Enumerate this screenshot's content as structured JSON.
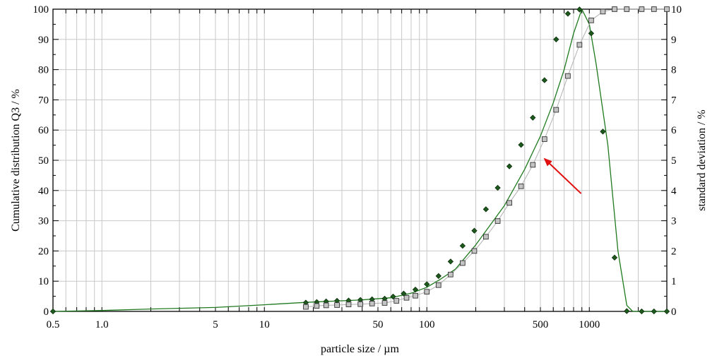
{
  "chart_data": {
    "type": "line",
    "title": "",
    "xlabel": "particle size / µm",
    "ylabel_left": "Cumulative distribution Q3 / %",
    "ylabel_right": "standard deviation / %",
    "x_scale": "log",
    "xlim": [
      0.5,
      3000
    ],
    "ylim_left": [
      0,
      100
    ],
    "ylim_right": [
      0,
      10
    ],
    "grid": true,
    "legend": "none",
    "x_tick_labels": [
      {
        "value": 0.5,
        "label": "0.5"
      },
      {
        "value": 1.0,
        "label": "1.0"
      },
      {
        "value": 5,
        "label": "5"
      },
      {
        "value": 10,
        "label": "10"
      },
      {
        "value": 50,
        "label": "50"
      },
      {
        "value": 100,
        "label": "100"
      },
      {
        "value": 500,
        "label": "500"
      },
      {
        "value": 1000,
        "label": "1000"
      }
    ],
    "y_left_ticks": [
      0,
      10,
      20,
      30,
      40,
      50,
      60,
      70,
      80,
      90,
      100
    ],
    "y_right_ticks": [
      0,
      1,
      2,
      3,
      4,
      5,
      6,
      7,
      8,
      9,
      10
    ],
    "series": [
      {
        "axis": "left",
        "color": "#1f7a1f",
        "marker": "diamond",
        "marker_fill": "#1e5a1e",
        "curve": [
          [
            0.5,
            0
          ],
          [
            1,
            0.3
          ],
          [
            2,
            0.8
          ],
          [
            5,
            1.3
          ],
          [
            10,
            2.2
          ],
          [
            18,
            3
          ],
          [
            40,
            3.8
          ],
          [
            60,
            4.5
          ],
          [
            80,
            6
          ],
          [
            100,
            8
          ],
          [
            120,
            10.5
          ],
          [
            150,
            14
          ],
          [
            200,
            22
          ],
          [
            300,
            35
          ],
          [
            400,
            47
          ],
          [
            500,
            58
          ],
          [
            600,
            69
          ],
          [
            700,
            80
          ],
          [
            800,
            92
          ],
          [
            900,
            100
          ],
          [
            1000,
            95
          ],
          [
            1100,
            82
          ],
          [
            1300,
            55
          ],
          [
            1500,
            20
          ],
          [
            1700,
            2
          ],
          [
            1850,
            0
          ],
          [
            3000,
            0
          ]
        ],
        "points": [
          [
            0.5,
            0
          ],
          [
            18,
            2.9
          ],
          [
            21,
            3.1
          ],
          [
            24,
            3.3
          ],
          [
            28,
            3.5
          ],
          [
            33,
            3.6
          ],
          [
            39,
            3.8
          ],
          [
            46,
            4
          ],
          [
            55,
            4.2
          ],
          [
            62,
            4.9
          ],
          [
            72,
            5.9
          ],
          [
            85,
            7.2
          ],
          [
            100,
            9
          ],
          [
            118,
            11.7
          ],
          [
            140,
            16.5
          ],
          [
            166,
            21.7
          ],
          [
            196,
            26.7
          ],
          [
            231,
            33.8
          ],
          [
            273,
            40.9
          ],
          [
            322,
            48
          ],
          [
            380,
            55.1
          ],
          [
            449,
            64.1
          ],
          [
            530,
            76.5
          ],
          [
            625,
            90
          ],
          [
            738,
            98.5
          ],
          [
            870,
            99.9
          ],
          [
            1027,
            92
          ],
          [
            1212,
            59.5
          ],
          [
            1430,
            17.8
          ],
          [
            1700,
            0.1
          ],
          [
            2100,
            0
          ],
          [
            2500,
            0
          ],
          [
            3000,
            0
          ]
        ]
      },
      {
        "axis": "left",
        "color": "#b0b0b0",
        "marker": "square",
        "marker_fill": "#c4c4c4",
        "points": [
          [
            18,
            1.5
          ],
          [
            21,
            1.8
          ],
          [
            24,
            2
          ],
          [
            28,
            2.1
          ],
          [
            33,
            2.3
          ],
          [
            39,
            2.4
          ],
          [
            46,
            2.6
          ],
          [
            55,
            2.8
          ],
          [
            65,
            3.5
          ],
          [
            75,
            4.5
          ],
          [
            85,
            5.2
          ],
          [
            100,
            6.5
          ],
          [
            118,
            8.7
          ],
          [
            140,
            12.2
          ],
          [
            166,
            16
          ],
          [
            196,
            20
          ],
          [
            231,
            24.7
          ],
          [
            273,
            29.9
          ],
          [
            322,
            35.9
          ],
          [
            380,
            41.4
          ],
          [
            449,
            48.5
          ],
          [
            530,
            57
          ],
          [
            625,
            66.7
          ],
          [
            738,
            77.9
          ],
          [
            870,
            88.2
          ],
          [
            1027,
            96.3
          ],
          [
            1212,
            99.2
          ],
          [
            1430,
            100
          ],
          [
            1700,
            100
          ],
          [
            2100,
            100
          ],
          [
            2500,
            100
          ],
          [
            3000,
            100
          ]
        ]
      }
    ],
    "annotations": [
      {
        "type": "arrow",
        "color": "#e01010",
        "from": [
          890,
          39
        ],
        "to": [
          500,
          50
        ]
      }
    ]
  }
}
